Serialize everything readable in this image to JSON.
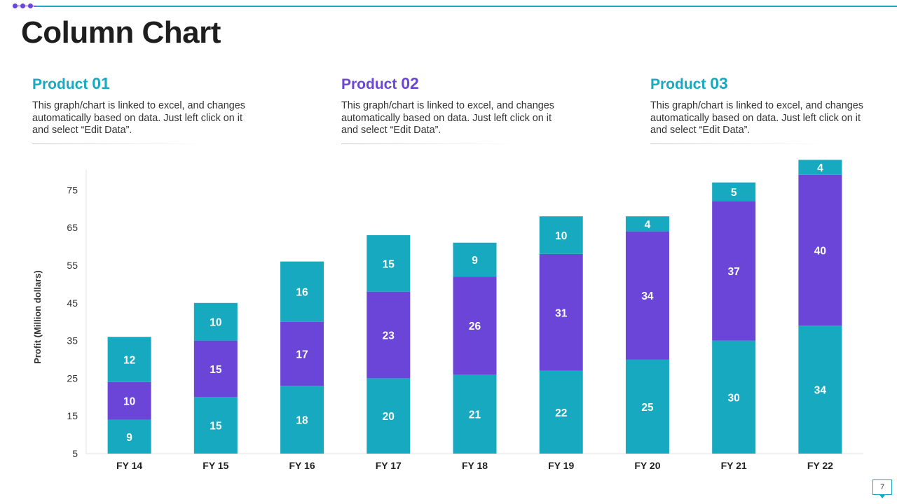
{
  "page": {
    "title": "Column Chart",
    "page_number": "7"
  },
  "products": [
    {
      "name": "Product",
      "num": "01",
      "desc": "This graph/chart is linked to excel, and changes automatically based on data. Just left click on it and select “Edit Data”."
    },
    {
      "name": "Product",
      "num": "02",
      "desc": "This graph/chart is linked to excel, and changes automatically based on data. Just left click on it and select “Edit Data”."
    },
    {
      "name": "Product",
      "num": "03",
      "desc": "This graph/chart is linked to excel, and changes automatically based on data. Just left click on it and select “Edit Data”."
    }
  ],
  "colors": {
    "teal": "#17a9bf",
    "purple": "#6a45d8"
  },
  "chart_data": {
    "type": "bar",
    "stacked": true,
    "title": "",
    "xlabel": "",
    "ylabel": "Profit  (Million dollars)",
    "categories": [
      "FY 14",
      "FY 15",
      "FY 16",
      "FY 17",
      "FY 18",
      "FY 19",
      "FY 20",
      "FY 21",
      "FY 22"
    ],
    "yticks": [
      5,
      15,
      25,
      35,
      45,
      55,
      65,
      75
    ],
    "ylim": [
      5,
      79
    ],
    "series": [
      {
        "name": "Product 01",
        "color": "#17a9bf",
        "values": [
          9,
          15,
          18,
          20,
          21,
          22,
          25,
          30,
          34
        ]
      },
      {
        "name": "Product 02",
        "color": "#6a45d8",
        "values": [
          10,
          15,
          17,
          23,
          26,
          31,
          34,
          37,
          40
        ]
      },
      {
        "name": "Product 03",
        "color": "#17a9bf",
        "values": [
          12,
          10,
          16,
          15,
          9,
          10,
          4,
          5,
          4
        ]
      }
    ]
  }
}
